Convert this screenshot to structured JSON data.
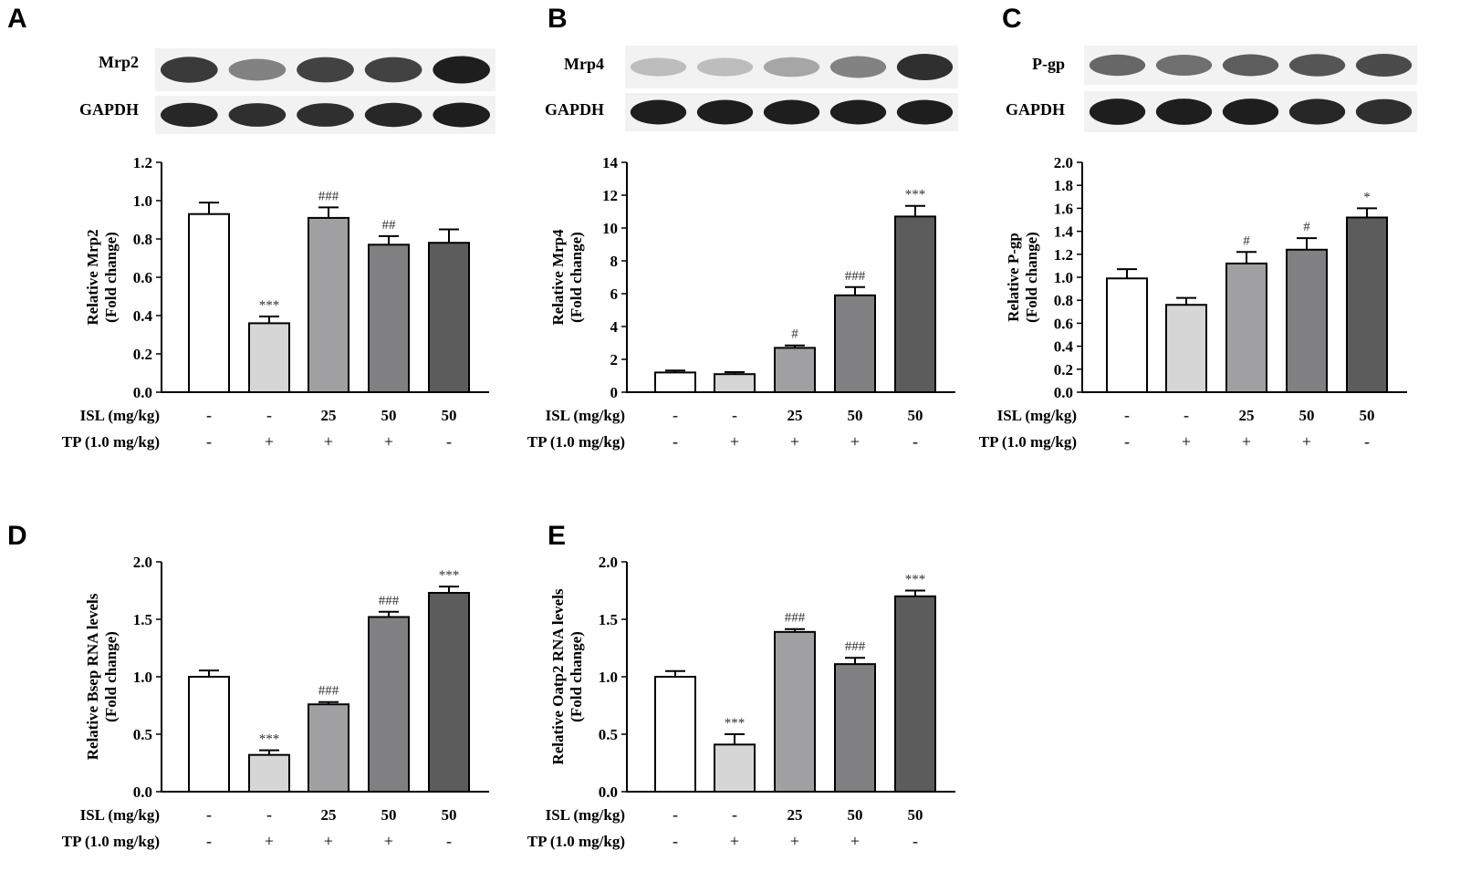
{
  "colors": {
    "bars": [
      "#ffffff",
      "#d6d6d6",
      "#a0a0a2",
      "#808082",
      "#5c5c5c"
    ],
    "axis": "#000000",
    "blot_background": "#f2f2f2",
    "blot_band": "#1e1e1e"
  },
  "panels": [
    {
      "letter": "A",
      "blot": {
        "target": "Mrp2",
        "loading": "GAPDH",
        "target_intensity": [
          0.85,
          0.45,
          0.8,
          0.8,
          1.0
        ],
        "loading_intensity": [
          0.95,
          0.9,
          0.9,
          0.95,
          1.0
        ]
      },
      "treatments": [
        {
          "label": "ISL (mg/kg)",
          "values": [
            "-",
            "-",
            "25",
            "50",
            "50"
          ]
        },
        {
          "label": "TP (1.0 mg/kg)",
          "values": [
            "-",
            "+",
            "+",
            "+",
            "-"
          ]
        }
      ]
    },
    {
      "letter": "B",
      "blot": {
        "target": "Mrp4",
        "loading": "GAPDH",
        "target_intensity": [
          0.12,
          0.12,
          0.25,
          0.45,
          0.9
        ],
        "loading_intensity": [
          1.0,
          1.0,
          1.0,
          1.0,
          1.0
        ]
      },
      "treatments": [
        {
          "label": "ISL (mg/kg)",
          "values": [
            "-",
            "-",
            "25",
            "50",
            "50"
          ]
        },
        {
          "label": "TP (1.0 mg/kg)",
          "values": [
            "-",
            "+",
            "+",
            "+",
            "-"
          ]
        }
      ]
    },
    {
      "letter": "C",
      "blot": {
        "target": "P-gp",
        "loading": "GAPDH",
        "target_intensity": [
          0.6,
          0.55,
          0.65,
          0.7,
          0.75
        ],
        "loading_intensity": [
          1.0,
          1.0,
          1.0,
          0.95,
          0.9
        ]
      },
      "treatments": [
        {
          "label": "ISL (mg/kg)",
          "values": [
            "-",
            "-",
            "25",
            "50",
            "50"
          ]
        },
        {
          "label": "TP (1.0 mg/kg)",
          "values": [
            "-",
            "+",
            "+",
            "+",
            "-"
          ]
        }
      ]
    },
    {
      "letter": "D",
      "treatments": [
        {
          "label": "ISL (mg/kg)",
          "values": [
            "-",
            "-",
            "25",
            "50",
            "50"
          ]
        },
        {
          "label": "TP (1.0 mg/kg)",
          "values": [
            "-",
            "+",
            "+",
            "+",
            "-"
          ]
        }
      ]
    },
    {
      "letter": "E",
      "treatments": [
        {
          "label": "ISL (mg/kg)",
          "values": [
            "-",
            "-",
            "25",
            "50",
            "50"
          ]
        },
        {
          "label": "TP (1.0 mg/kg)",
          "values": [
            "-",
            "+",
            "+",
            "+",
            "-"
          ]
        }
      ]
    }
  ],
  "chart_data": [
    {
      "panel": "A",
      "type": "bar",
      "ylabel_lines": [
        "Relative Mrp2",
        "(Fold change)"
      ],
      "ylim": [
        0,
        1.2
      ],
      "yticks": [
        "0.0",
        "0.2",
        "0.4",
        "0.6",
        "0.8",
        "1.0",
        "1.2"
      ],
      "values": [
        0.93,
        0.36,
        0.91,
        0.77,
        0.78
      ],
      "errors": [
        0.06,
        0.035,
        0.055,
        0.045,
        0.07
      ],
      "significance": [
        "",
        "***",
        "###",
        "##",
        ""
      ],
      "grid": false
    },
    {
      "panel": "B",
      "type": "bar",
      "ylabel_lines": [
        "Relative Mrp4",
        "(Fold change)"
      ],
      "ylim": [
        0,
        14
      ],
      "yticks": [
        "0",
        "2",
        "4",
        "6",
        "8",
        "10",
        "12",
        "14"
      ],
      "values": [
        1.2,
        1.1,
        2.7,
        5.9,
        10.7
      ],
      "errors": [
        0.12,
        0.12,
        0.15,
        0.5,
        0.65
      ],
      "significance": [
        "",
        "",
        "#",
        "###",
        "***"
      ],
      "grid": false
    },
    {
      "panel": "C",
      "type": "bar",
      "ylabel_lines": [
        "Relative P-gp",
        "(Fold change)"
      ],
      "ylim": [
        0,
        2.0
      ],
      "yticks": [
        "0.0",
        "0.2",
        "0.4",
        "0.6",
        "0.8",
        "1.0",
        "1.2",
        "1.4",
        "1.6",
        "1.8",
        "2.0"
      ],
      "values": [
        0.99,
        0.76,
        1.12,
        1.24,
        1.52
      ],
      "errors": [
        0.08,
        0.06,
        0.1,
        0.1,
        0.08
      ],
      "significance": [
        "",
        "",
        "#",
        "#",
        "*"
      ],
      "grid": false
    },
    {
      "panel": "D",
      "type": "bar",
      "ylabel_lines": [
        "Relative Bsep RNA levels",
        "(Fold change)"
      ],
      "ylim": [
        0,
        2.0
      ],
      "yticks": [
        "0.0",
        "0.5",
        "1.0",
        "1.5",
        "2.0"
      ],
      "values": [
        1.0,
        0.32,
        0.76,
        1.52,
        1.73
      ],
      "errors": [
        0.055,
        0.04,
        0.02,
        0.045,
        0.055
      ],
      "significance": [
        "",
        "***",
        "###",
        "###",
        "***"
      ],
      "grid": false
    },
    {
      "panel": "E",
      "type": "bar",
      "ylabel_lines": [
        "Relative Oatp2 RNA levels",
        "(Fold change)"
      ],
      "ylim": [
        0,
        2.0
      ],
      "yticks": [
        "0.0",
        "0.5",
        "1.0",
        "1.5",
        "2.0"
      ],
      "values": [
        1.0,
        0.41,
        1.39,
        1.11,
        1.7
      ],
      "errors": [
        0.05,
        0.09,
        0.025,
        0.055,
        0.05
      ],
      "significance": [
        "",
        "***",
        "###",
        "###",
        "***"
      ],
      "grid": false
    }
  ]
}
